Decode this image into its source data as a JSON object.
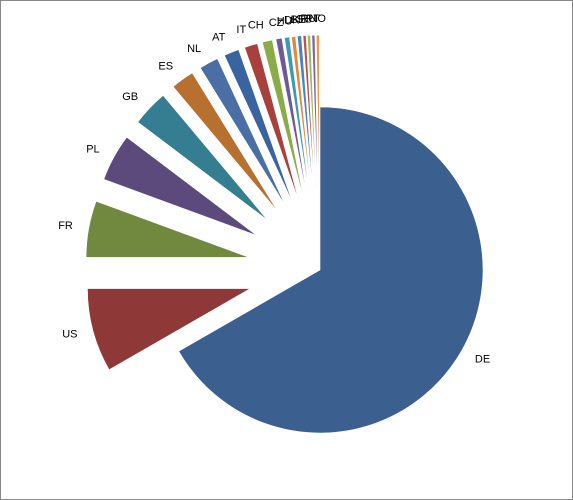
{
  "chart_data": {
    "type": "pie",
    "categories": [
      "DE",
      "US",
      "FR",
      "PL",
      "GB",
      "ES",
      "NL",
      "AT",
      "IT",
      "CH",
      "CZ",
      "HU",
      "DK",
      "BE",
      "SE",
      "RU",
      "PT",
      "NO"
    ],
    "values": [
      66.7,
      8.3,
      5.6,
      4.7,
      3.6,
      2.3,
      1.9,
      1.5,
      1.3,
      1.0,
      0.6,
      0.5,
      0.4,
      0.4,
      0.3,
      0.3,
      0.3,
      0.3
    ],
    "colors": [
      "#3b5f8f",
      "#8e3937",
      "#71893f",
      "#5c4a7d",
      "#357d91",
      "#b8702f",
      "#4a6fa5",
      "#3a64a0",
      "#a8403c",
      "#8aac48",
      "#6d5a96",
      "#3b9bb5",
      "#e0893a",
      "#4f81bd",
      "#c0504d",
      "#9bbb59",
      "#8064a2",
      "#f79646"
    ],
    "exploded": true
  }
}
